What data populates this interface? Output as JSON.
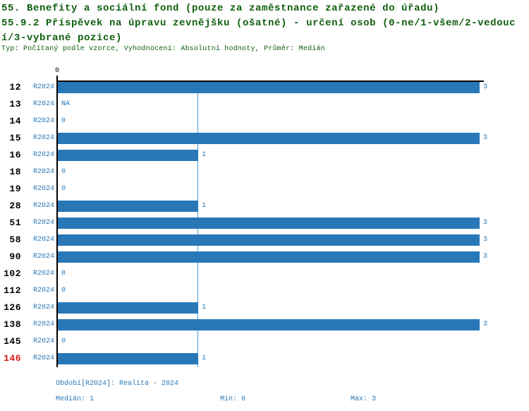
{
  "header": {
    "title_line1": "55. Benefity a sociální fond (pouze za zaměstnance zařazené do úřadu)",
    "title_line2": "55.9.2 Příspěvek na úpravu zevnějšku (ošatné) - určení osob (0-ne/1-všem/2-vedouc",
    "title_line3": "í/3-vybrané pozice)",
    "subtitle": "Typ: Počítaný podle vzorce, Vyhodnocení: Absolutní hodnoty, Průměr: Medián"
  },
  "chart_data": {
    "type": "bar",
    "orientation": "horizontal",
    "title": "55.9.2 Příspěvek na úpravu zevnějšku (ošatné) - určení osob (0-ne/1-všem/2-vedoucí/3-vybrané pozice)",
    "xlabel": "",
    "ylabel": "",
    "xlim": [
      0,
      3
    ],
    "x_tick_labels": [
      "0"
    ],
    "grid": false,
    "median_reference_value": 1,
    "period_label": "R2024",
    "categories": [
      "12",
      "13",
      "14",
      "15",
      "16",
      "18",
      "19",
      "28",
      "51",
      "58",
      "90",
      "102",
      "112",
      "126",
      "138",
      "145",
      "146"
    ],
    "values": [
      3,
      null,
      0,
      3,
      1,
      0,
      0,
      1,
      3,
      3,
      3,
      0,
      0,
      1,
      3,
      0,
      1
    ],
    "rows": [
      {
        "id": "12",
        "period": "R2024",
        "value": 3,
        "label": "3",
        "highlight": false
      },
      {
        "id": "13",
        "period": "R2024",
        "value": null,
        "label": "NA",
        "highlight": false
      },
      {
        "id": "14",
        "period": "R2024",
        "value": 0,
        "label": "0",
        "highlight": false
      },
      {
        "id": "15",
        "period": "R2024",
        "value": 3,
        "label": "3",
        "highlight": false
      },
      {
        "id": "16",
        "period": "R2024",
        "value": 1,
        "label": "1",
        "highlight": false
      },
      {
        "id": "18",
        "period": "R2024",
        "value": 0,
        "label": "0",
        "highlight": false
      },
      {
        "id": "19",
        "period": "R2024",
        "value": 0,
        "label": "0",
        "highlight": false
      },
      {
        "id": "28",
        "period": "R2024",
        "value": 1,
        "label": "1",
        "highlight": false
      },
      {
        "id": "51",
        "period": "R2024",
        "value": 3,
        "label": "3",
        "highlight": false
      },
      {
        "id": "58",
        "period": "R2024",
        "value": 3,
        "label": "3",
        "highlight": false
      },
      {
        "id": "90",
        "period": "R2024",
        "value": 3,
        "label": "3",
        "highlight": false
      },
      {
        "id": "102",
        "period": "R2024",
        "value": 0,
        "label": "0",
        "highlight": false
      },
      {
        "id": "112",
        "period": "R2024",
        "value": 0,
        "label": "0",
        "highlight": false
      },
      {
        "id": "126",
        "period": "R2024",
        "value": 1,
        "label": "1",
        "highlight": false
      },
      {
        "id": "138",
        "period": "R2024",
        "value": 3,
        "label": "3",
        "highlight": false
      },
      {
        "id": "145",
        "period": "R2024",
        "value": 0,
        "label": "0",
        "highlight": false
      },
      {
        "id": "146",
        "period": "R2024",
        "value": 1,
        "label": "1",
        "highlight": true
      }
    ],
    "axis_zero_label": "0"
  },
  "footer": {
    "period": "Období[R2024]: Realita - 2024",
    "median": "Medián: 1",
    "min": "Min: 0",
    "max": "Max: 3"
  },
  "colors": {
    "bar": "#2878B8",
    "blue_text": "#2878B8",
    "median_line": "#4E9BD4",
    "axis": "#000000",
    "title_green": "#0E5E0E",
    "highlight_red": "#D81616"
  }
}
